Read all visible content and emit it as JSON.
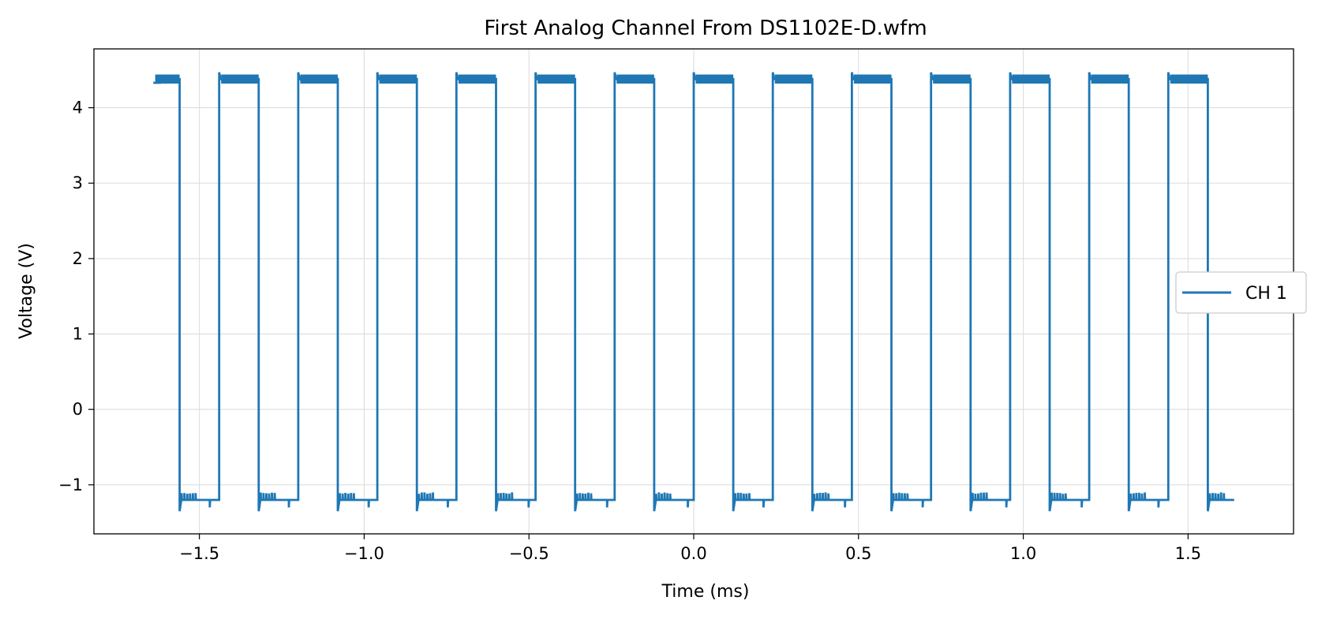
{
  "chart_data": {
    "type": "line",
    "title": "First Analog Channel From DS1102E-D.wfm",
    "xlabel": "Time (ms)",
    "ylabel": "Voltage (V)",
    "xlim": [
      -1.82,
      1.82
    ],
    "ylim": [
      -1.65,
      4.78
    ],
    "xticks": [
      -1.5,
      -1.0,
      -0.5,
      0.0,
      0.5,
      1.0,
      1.5
    ],
    "xtick_labels": [
      "−1.5",
      "−1.0",
      "−0.5",
      "0.0",
      "0.5",
      "1.0",
      "1.5"
    ],
    "yticks": [
      -1,
      0,
      1,
      2,
      3,
      4
    ],
    "ytick_labels": [
      "−1",
      "0",
      "1",
      "2",
      "3",
      "4"
    ],
    "grid": true,
    "legend_position": "center-right",
    "series": [
      {
        "name": "CH 1",
        "color": "#1f77b4",
        "waveform": "square",
        "x_start": -1.64,
        "x_end": 1.64,
        "first_falling_edge": -1.56,
        "period": 0.24,
        "duty_high": 0.5,
        "high_level": 4.38,
        "low_level": -1.2,
        "rising_overshoot": 4.47,
        "falling_undershoot": -1.35
      }
    ]
  }
}
